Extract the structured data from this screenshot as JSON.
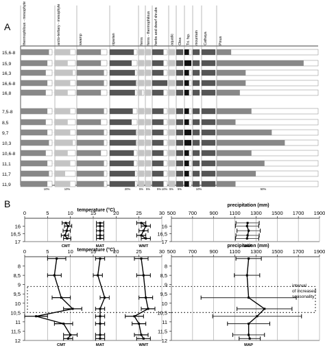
{
  "panel_a": {
    "label": "A",
    "columns": [
      "thermophilous - mesophyte",
      "arcto-tertiary - mesophyte",
      "swamp",
      "riparian",
      "ferns",
      "ferns - thermophilous",
      "herbs and dwarf shrubs",
      "aquatic",
      "Olea",
      "Tri. fsp.",
      "mountain",
      "Cathaya",
      "Pinus"
    ],
    "samples": [
      "15,6-8",
      "15,9",
      "16,3",
      "16,6-8",
      "16,8",
      "7,5-8",
      "8,5",
      "9,7",
      "10,3",
      "10,6-8",
      "11,1",
      "11,7",
      "11,9"
    ],
    "scale_labels": [
      "10%",
      "10%",
      "20%",
      "5%",
      "5%",
      "5%",
      "10%",
      "5%",
      "5%",
      "10%",
      "50%"
    ],
    "colors": {
      "dark": "#555555",
      "mid": "#888888",
      "light": "#c4c4c4",
      "black": "#111111"
    }
  },
  "panel_b": {
    "label": "B",
    "temp_axis_title": "temperature (°C)",
    "precip_axis_title": "precipitation (mm)",
    "temp_ticks": [
      "0",
      "5",
      "10",
      "15",
      "20",
      "25",
      "30"
    ],
    "precip_ticks": [
      "500",
      "700",
      "900",
      "1100",
      "1300",
      "1500",
      "1700",
      "1900"
    ],
    "seasonality_note": [
      "interval",
      "of increased",
      "seasonality"
    ],
    "series_labels": [
      "CMT",
      "MAT",
      "WMT",
      "MAP"
    ]
  },
  "chart_data": [
    {
      "type": "table",
      "title": "",
      "columns": [
        "thermophilous - mesophyte",
        "arcto-tertiary - mesophyte",
        "swamp",
        "riparian",
        "ferns",
        "ferns - thermophilous",
        "herbs and dwarf shrubs",
        "aquatic",
        "Olea",
        "Tri. fsp.",
        "mountain",
        "Cathaya",
        "Pinus"
      ],
      "rows": [
        "15,6-8",
        "15,9",
        "16,3",
        "16,6-8",
        "16,8",
        "7,5-8",
        "8,5",
        "9,7",
        "10,3",
        "10,6-8",
        "11,1",
        "11,7",
        "11,9"
      ],
      "values_percent": [
        [
          18,
          6,
          8,
          22,
          3,
          2,
          3,
          2,
          3,
          2,
          2,
          1,
          10
        ],
        [
          17,
          5,
          8,
          20,
          3,
          2,
          3,
          2,
          3,
          3,
          2,
          1,
          60
        ],
        [
          16,
          7,
          9,
          23,
          3,
          2,
          3,
          2,
          3,
          2,
          2,
          1,
          20
        ],
        [
          17,
          6,
          9,
          24,
          3,
          2,
          4,
          2,
          3,
          2,
          2,
          1,
          20
        ],
        [
          16,
          5,
          8,
          23,
          2,
          2,
          3,
          2,
          3,
          2,
          2,
          1,
          16
        ],
        [
          17,
          6,
          9,
          21,
          3,
          2,
          3,
          2,
          3,
          2,
          2,
          1,
          24
        ],
        [
          16,
          5,
          8,
          20,
          3,
          2,
          3,
          2,
          3,
          2,
          2,
          1,
          13
        ],
        [
          17,
          6,
          9,
          24,
          3,
          2,
          3,
          2,
          3,
          3,
          2,
          1,
          38
        ],
        [
          18,
          7,
          9,
          24,
          3,
          2,
          3,
          2,
          3,
          3,
          2,
          1,
          47
        ],
        [
          16,
          5,
          8,
          22,
          3,
          2,
          3,
          2,
          3,
          2,
          2,
          1,
          24
        ],
        [
          17,
          6,
          9,
          22,
          3,
          2,
          3,
          2,
          3,
          2,
          2,
          1,
          33
        ],
        [
          18,
          4,
          9,
          23,
          3,
          2,
          3,
          2,
          3,
          2,
          2,
          1,
          27
        ],
        [
          17,
          6,
          9,
          23,
          3,
          2,
          3,
          2,
          3,
          2,
          2,
          1,
          13
        ]
      ]
    },
    {
      "type": "line",
      "title": "temperature (°C)",
      "xlabel": "temperature (°C)",
      "xlim": [
        0,
        30
      ],
      "ylim": [
        15.5,
        17
      ],
      "y_ticks": [
        16,
        16.5,
        17
      ],
      "series": [
        {
          "name": "CMT",
          "y": [
            15.8,
            16.0,
            16.3,
            16.6,
            16.8
          ],
          "x": [
            9.0,
            9.5,
            9.2,
            8.8,
            9.3
          ],
          "err": [
            0.8,
            0.8,
            0.8,
            0.8,
            0.8
          ]
        },
        {
          "name": "MAT",
          "y": [
            15.8,
            16.0,
            16.3,
            16.6,
            16.8
          ],
          "x": [
            16.5,
            16.5,
            16.5,
            16.5,
            16.5
          ],
          "err": [
            0.8,
            0.8,
            0.8,
            0.8,
            0.8
          ]
        },
        {
          "name": "WMT",
          "y": [
            15.8,
            16.0,
            16.3,
            16.6,
            16.8
          ],
          "x": [
            25.5,
            26.5,
            26.0,
            25.5,
            26.5
          ],
          "err": [
            1.0,
            1.0,
            1.0,
            1.0,
            1.0
          ]
        }
      ]
    },
    {
      "type": "line",
      "title": "precipitation (mm)",
      "xlabel": "precipitation (mm)",
      "xlim": [
        500,
        1900
      ],
      "ylim": [
        15.5,
        17
      ],
      "y_ticks": [
        16,
        16.5,
        17
      ],
      "series": [
        {
          "name": "MAP",
          "y": [
            15.8,
            16.0,
            16.3,
            16.6,
            16.8
          ],
          "x": [
            1220,
            1215,
            1230,
            1220,
            1215
          ],
          "err": [
            110,
            110,
            110,
            110,
            110
          ]
        }
      ]
    },
    {
      "type": "line",
      "title": "temperature (°C)",
      "xlabel": "temperature (°C)",
      "xlim": [
        0,
        30
      ],
      "ylim": [
        7.5,
        12
      ],
      "y_ticks": [
        8,
        8.5,
        9,
        9.5,
        10,
        10.5,
        11,
        11.5,
        12
      ],
      "series": [
        {
          "name": "CMT",
          "y": [
            7.6,
            8.5,
            9.7,
            10.3,
            10.7,
            11.1,
            11.7,
            11.9
          ],
          "x": [
            7.0,
            6.5,
            8.0,
            10.5,
            2.5,
            8.5,
            10.0,
            9.5
          ],
          "err": [
            2.0,
            1.5,
            2.0,
            2.0,
            2.5,
            2.0,
            1.5,
            1.0
          ]
        },
        {
          "name": "MAT",
          "y": [
            7.6,
            8.5,
            9.7,
            10.3,
            10.7,
            11.1,
            11.7,
            11.9
          ],
          "x": [
            16.5,
            16.0,
            17.5,
            16.5,
            16.5,
            16.5,
            16.5,
            16.5
          ],
          "err": [
            1.0,
            1.0,
            1.0,
            1.0,
            1.0,
            1.0,
            1.0,
            1.0
          ]
        },
        {
          "name": "WMT",
          "y": [
            7.6,
            8.5,
            9.7,
            10.3,
            10.7,
            11.1,
            11.7,
            11.9
          ],
          "x": [
            25.5,
            26.0,
            26.5,
            27.0,
            24.0,
            25.0,
            25.5,
            26.0
          ],
          "err": [
            1.5,
            1.5,
            1.5,
            1.5,
            2.0,
            1.5,
            1.5,
            1.5
          ]
        }
      ]
    },
    {
      "type": "line",
      "title": "precipitation (mm)",
      "xlabel": "precipitation (mm)",
      "xlim": [
        500,
        1900
      ],
      "ylim": [
        7.5,
        12
      ],
      "y_ticks": [
        8,
        8.5,
        9,
        9.5,
        10,
        10.5,
        11,
        11.5,
        12
      ],
      "series": [
        {
          "name": "MAP",
          "y": [
            7.6,
            8.5,
            9.7,
            10.3,
            10.7,
            11.1,
            11.7,
            11.9
          ],
          "x": [
            1230,
            1215,
            1230,
            1380,
            1310,
            1230,
            1230,
            1240
          ],
          "err": [
            120,
            120,
            450,
            260,
            420,
            200,
            150,
            100
          ]
        }
      ]
    }
  ]
}
